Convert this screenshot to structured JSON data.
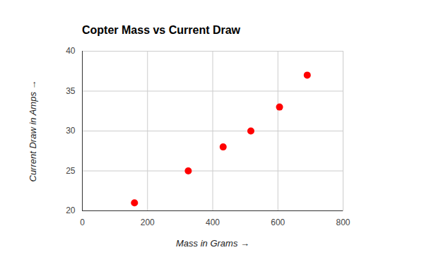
{
  "chart_data": {
    "type": "scatter",
    "title": "Copter Mass vs Current Draw",
    "x_label": "Mass in Grams",
    "y_label": "Current Draw in Amps",
    "x": [
      160,
      325,
      432,
      517,
      605,
      690
    ],
    "values": [
      21,
      25,
      28,
      30,
      33,
      37
    ],
    "color": "#ff0000",
    "marker": "circle",
    "xlim": [
      0,
      800
    ],
    "xticks": [
      0,
      200,
      400,
      600,
      800
    ],
    "ylim": [
      20,
      40
    ],
    "yticks": [
      20,
      25,
      30,
      35,
      40
    ],
    "grid": true
  }
}
